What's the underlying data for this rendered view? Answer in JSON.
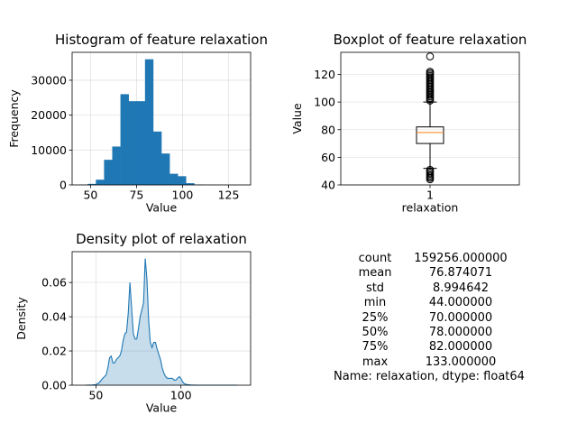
{
  "chart_data": [
    {
      "type": "bar",
      "title": "Histogram of feature relaxation",
      "xlabel": "Value",
      "ylabel": "Frequency",
      "xlim": [
        40,
        137
      ],
      "ylim": [
        0,
        38000
      ],
      "xticks": [
        50,
        75,
        100,
        125
      ],
      "yticks": [
        0,
        10000,
        20000,
        30000
      ],
      "grid": true,
      "color": "#1f77b4",
      "bin_edges": [
        44,
        48.45,
        52.9,
        57.35,
        61.8,
        66.25,
        70.7,
        75.15,
        79.6,
        84.05,
        88.5,
        92.95,
        97.4,
        101.85,
        106.3,
        110.75,
        115.2,
        119.65,
        124.1,
        128.55,
        133
      ],
      "values": [
        50,
        300,
        1500,
        7200,
        11000,
        26000,
        24000,
        24000,
        36000,
        15300,
        9000,
        3200,
        2500,
        500,
        100,
        40,
        20,
        10,
        5,
        2
      ]
    },
    {
      "type": "boxplot",
      "title": "Boxplot of feature relaxation",
      "xlabel": "relaxation",
      "ylabel": "Value",
      "categories": [
        "1"
      ],
      "ylim": [
        40,
        136
      ],
      "yticks": [
        40,
        60,
        80,
        100,
        120
      ],
      "grid": true,
      "median_color": "#ff7f0e",
      "box": {
        "q1": 70,
        "median": 78,
        "q3": 82,
        "whisker_low": 52,
        "whisker_high": 100
      },
      "outliers": [
        44,
        45,
        46,
        47,
        48,
        49,
        50,
        51,
        101,
        102,
        103,
        104,
        105,
        106,
        107,
        108,
        109,
        110,
        111,
        112,
        113,
        114,
        115,
        116,
        117,
        118,
        119,
        120,
        121,
        122,
        133
      ]
    },
    {
      "type": "area",
      "title": "Density plot of relaxation",
      "xlabel": "Value",
      "ylabel": "Density",
      "xlim": [
        36,
        141
      ],
      "ylim": [
        0,
        0.078
      ],
      "xticks": [
        50,
        100
      ],
      "yticks": [
        0.0,
        0.02,
        0.04,
        0.06
      ],
      "ytick_labels": [
        "0.00",
        "0.02",
        "0.04",
        "0.06"
      ],
      "grid": true,
      "color": "#1f77b4",
      "x": [
        44,
        48,
        50,
        52,
        54,
        56,
        57,
        58,
        59,
        60,
        61,
        62,
        63,
        64,
        65,
        66,
        67,
        68,
        69,
        70,
        71,
        72,
        73,
        74,
        75,
        76,
        77,
        78,
        79,
        80,
        81,
        82,
        83,
        84,
        85,
        86,
        87,
        88,
        89,
        90,
        91,
        92,
        93,
        94,
        95,
        96,
        97,
        98,
        99,
        100,
        101,
        102,
        104,
        106,
        110,
        115,
        120,
        125,
        133
      ],
      "y": [
        0.0,
        0.0001,
        0.0004,
        0.0015,
        0.004,
        0.006,
        0.01,
        0.016,
        0.017,
        0.013,
        0.013,
        0.015,
        0.016,
        0.017,
        0.02,
        0.026,
        0.03,
        0.031,
        0.042,
        0.06,
        0.045,
        0.03,
        0.027,
        0.027,
        0.033,
        0.04,
        0.044,
        0.048,
        0.074,
        0.062,
        0.038,
        0.025,
        0.022,
        0.025,
        0.025,
        0.021,
        0.018,
        0.015,
        0.01,
        0.007,
        0.005,
        0.004,
        0.004,
        0.004,
        0.004,
        0.003,
        0.003,
        0.004,
        0.005,
        0.004,
        0.002,
        0.0008,
        0.0003,
        0.0001,
        0.0,
        0.0,
        0.0,
        0.0,
        0.0
      ]
    }
  ],
  "stats": {
    "rows": [
      {
        "key": "count",
        "value": "159256.000000"
      },
      {
        "key": "mean",
        "value": "76.874071"
      },
      {
        "key": "std",
        "value": "8.994642"
      },
      {
        "key": "min",
        "value": "44.000000"
      },
      {
        "key": "25%",
        "value": "70.000000"
      },
      {
        "key": "50%",
        "value": "78.000000"
      },
      {
        "key": "75%",
        "value": "82.000000"
      },
      {
        "key": "max",
        "value": "133.000000"
      }
    ],
    "footer": "Name: relaxation, dtype: float64"
  }
}
